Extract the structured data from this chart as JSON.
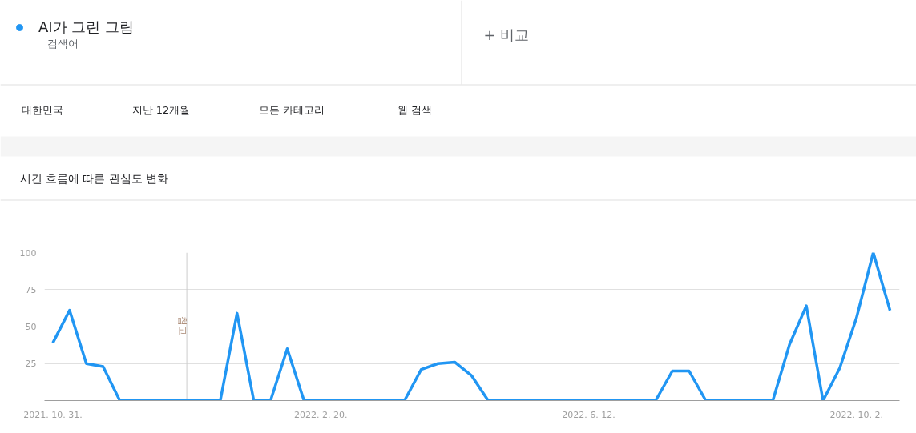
{
  "chart_data": {
    "type": "line",
    "title": "시간 흐름에 따른 관심도 변화",
    "annotations": [
      "검색어",
      "+ 비교",
      "대한민국",
      "지난 12개월",
      "모든 카테고리",
      "웹 검색"
    ],
    "x": [
      "2021-10-31",
      "2021-11-07",
      "2021-11-14",
      "2021-11-21",
      "2021-11-28",
      "2021-12-05",
      "2021-12-12",
      "2021-12-19",
      "2021-12-26",
      "2022-01-02",
      "2022-01-09",
      "2022-01-16",
      "2022-01-23",
      "2022-01-30",
      "2022-02-06",
      "2022-02-13",
      "2022-02-20",
      "2022-02-27",
      "2022-03-06",
      "2022-03-13",
      "2022-03-20",
      "2022-03-27",
      "2022-04-03",
      "2022-04-10",
      "2022-04-17",
      "2022-04-24",
      "2022-05-01",
      "2022-05-08",
      "2022-05-15",
      "2022-05-22",
      "2022-05-29",
      "2022-06-05",
      "2022-06-12",
      "2022-06-19",
      "2022-06-26",
      "2022-07-03",
      "2022-07-10",
      "2022-07-17",
      "2022-07-24",
      "2022-07-31",
      "2022-08-07",
      "2022-08-14",
      "2022-08-21",
      "2022-08-28",
      "2022-09-04",
      "2022-09-11",
      "2022-09-18",
      "2022-09-25",
      "2022-10-02",
      "2022-10-09",
      "2022-10-16"
    ],
    "series": [
      {
        "name": "AI가 그린 그림",
        "color": "#2196f3",
        "values": [
          39,
          61,
          25,
          23,
          0,
          0,
          0,
          0,
          0,
          0,
          0,
          59,
          0,
          0,
          35,
          0,
          0,
          0,
          0,
          0,
          0,
          0,
          21,
          25,
          26,
          17,
          0,
          0,
          0,
          0,
          0,
          0,
          0,
          0,
          0,
          0,
          0,
          20,
          20,
          0,
          0,
          0,
          0,
          0,
          38,
          64,
          0,
          22,
          56,
          100,
          61
        ]
      }
    ],
    "xlim": [
      "2021-10-27T12:00",
      "2022-10-20"
    ],
    "xticks": [
      {
        "value": "2021-10-31",
        "label": "2021. 10. 31."
      },
      {
        "value": "2022-02-20",
        "label": "2022. 2. 20."
      },
      {
        "value": "2022-06-12",
        "label": "2022. 6. 12."
      },
      {
        "value": "2022-10-02",
        "label": "2022. 10. 2."
      }
    ],
    "ylim": [
      0,
      100
    ],
    "yticks": [
      25,
      50,
      75,
      100
    ],
    "ref_lines": [
      {
        "axis": "x",
        "value": "2021-12-26",
        "label": "참고",
        "color": "#cccccc"
      }
    ],
    "grid": "y",
    "legend": "top left",
    "line_style": "solid",
    "marker": "none"
  }
}
